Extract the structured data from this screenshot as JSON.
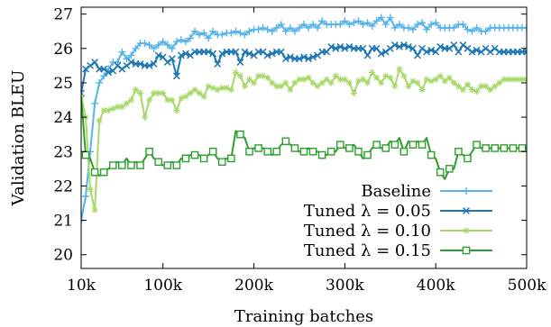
{
  "chart_data": {
    "type": "line",
    "xlabel": "Training batches",
    "ylabel": "Validation BLEU",
    "xlim": [
      10000,
      500000
    ],
    "ylim": [
      19.6,
      27.2
    ],
    "xticks": [
      10000,
      100000,
      200000,
      300000,
      400000,
      500000
    ],
    "xtick_labels": [
      "10k",
      "100k",
      "200k",
      "300k",
      "400k",
      "500k"
    ],
    "yticks": [
      20,
      21,
      22,
      23,
      24,
      25,
      26,
      27
    ],
    "ytick_labels": [
      "20",
      "21",
      "22",
      "23",
      "24",
      "25",
      "26",
      "27"
    ],
    "grid": false,
    "legend_position": "bottom-right",
    "x": [
      5000,
      10000,
      15000,
      20000,
      25000,
      30000,
      35000,
      40000,
      45000,
      50000,
      55000,
      60000,
      65000,
      70000,
      75000,
      80000,
      85000,
      90000,
      95000,
      100000,
      105000,
      110000,
      115000,
      120000,
      125000,
      130000,
      135000,
      140000,
      145000,
      150000,
      155000,
      160000,
      165000,
      170000,
      175000,
      180000,
      185000,
      190000,
      195000,
      200000,
      205000,
      210000,
      215000,
      220000,
      225000,
      230000,
      235000,
      240000,
      245000,
      250000,
      255000,
      260000,
      265000,
      270000,
      275000,
      280000,
      285000,
      290000,
      295000,
      300000,
      305000,
      310000,
      315000,
      320000,
      325000,
      330000,
      335000,
      340000,
      345000,
      350000,
      355000,
      360000,
      365000,
      370000,
      375000,
      380000,
      385000,
      390000,
      395000,
      400000,
      405000,
      410000,
      415000,
      420000,
      425000,
      430000,
      435000,
      440000,
      445000,
      450000,
      455000,
      460000,
      465000,
      470000,
      475000,
      480000,
      485000,
      490000,
      495000,
      500000
    ],
    "series": [
      {
        "name": "Baseline",
        "color": "#56b4e9",
        "marker": "plus",
        "values": [
          19.6,
          21.0,
          21.7,
          23.0,
          24.4,
          25.0,
          25.2,
          25.4,
          25.6,
          25.6,
          25.9,
          25.7,
          25.8,
          26.0,
          26.15,
          26.15,
          26.1,
          26.0,
          26.1,
          26.2,
          26.1,
          26.0,
          26.2,
          26.25,
          26.2,
          26.3,
          26.5,
          26.4,
          26.45,
          26.3,
          26.5,
          26.4,
          26.4,
          26.45,
          26.45,
          26.5,
          26.45,
          26.4,
          26.5,
          26.55,
          26.55,
          26.6,
          26.55,
          26.5,
          26.6,
          26.7,
          26.5,
          26.6,
          26.5,
          26.6,
          26.7,
          26.6,
          26.7,
          26.6,
          26.8,
          26.7,
          26.7,
          26.7,
          26.7,
          26.8,
          26.7,
          26.75,
          26.8,
          26.7,
          26.75,
          26.65,
          26.8,
          26.9,
          26.7,
          26.9,
          26.6,
          26.7,
          26.6,
          26.6,
          26.55,
          26.7,
          26.75,
          26.55,
          26.7,
          26.75,
          26.6,
          26.6,
          26.6,
          26.6,
          26.7,
          26.7,
          26.55,
          26.5,
          26.6,
          26.5,
          26.5,
          26.6,
          26.6,
          26.6,
          26.6,
          26.6,
          26.6,
          26.6,
          26.6,
          26.6
        ]
      },
      {
        "name": "Tuned λ = 0.05",
        "color": "#1f77b4",
        "marker": "x",
        "values": [
          null,
          24.7,
          25.4,
          25.5,
          25.6,
          25.4,
          25.4,
          25.3,
          25.35,
          25.5,
          25.4,
          25.5,
          25.6,
          25.55,
          25.55,
          25.5,
          25.5,
          25.55,
          25.8,
          25.75,
          25.6,
          25.7,
          25.2,
          25.8,
          25.85,
          25.8,
          25.9,
          25.9,
          25.9,
          25.9,
          25.85,
          25.55,
          25.85,
          25.9,
          25.9,
          25.9,
          25.6,
          25.9,
          25.85,
          25.8,
          25.9,
          25.9,
          25.8,
          25.85,
          25.9,
          25.9,
          25.7,
          25.75,
          25.7,
          25.7,
          25.75,
          25.7,
          25.75,
          25.8,
          25.9,
          25.9,
          26.05,
          26.0,
          26.05,
          26.0,
          26.05,
          26.0,
          26.0,
          26.0,
          25.8,
          26.0,
          26.0,
          25.85,
          25.9,
          26.0,
          26.1,
          26.05,
          26.1,
          26.05,
          26.0,
          25.8,
          26.0,
          25.9,
          25.95,
          25.9,
          26.05,
          26.0,
          26.0,
          26.1,
          25.9,
          26.1,
          26.0,
          25.9,
          25.95,
          25.9,
          26.0,
          25.9,
          26.0,
          25.9,
          25.9,
          25.9,
          25.9,
          25.9,
          25.9,
          25.9
        ]
      },
      {
        "name": "Tuned λ = 0.10",
        "color": "#a6d96a",
        "marker": "star",
        "values": [
          null,
          24.6,
          24.0,
          21.9,
          21.3,
          23.9,
          24.2,
          24.2,
          24.25,
          24.3,
          24.3,
          24.4,
          24.5,
          24.8,
          24.7,
          24.0,
          24.5,
          24.7,
          24.7,
          24.7,
          24.5,
          24.5,
          24.2,
          24.55,
          24.6,
          24.7,
          24.8,
          24.7,
          24.6,
          24.9,
          24.85,
          24.8,
          24.85,
          24.85,
          24.8,
          25.3,
          25.2,
          24.9,
          25.1,
          25.0,
          25.2,
          25.2,
          25.15,
          25.0,
          24.9,
          24.9,
          25.0,
          24.8,
          25.0,
          25.1,
          25.1,
          25.15,
          25.0,
          24.9,
          25.0,
          25.1,
          25.0,
          25.2,
          25.1,
          25.1,
          25.0,
          24.7,
          25.05,
          25.1,
          25.0,
          25.3,
          25.15,
          25.0,
          25.2,
          25.15,
          24.9,
          25.4,
          25.2,
          24.9,
          25.05,
          25.0,
          24.8,
          25.1,
          25.05,
          25.1,
          25.2,
          25.05,
          25.15,
          25.0,
          24.9,
          24.8,
          24.95,
          24.8,
          24.75,
          24.9,
          24.9,
          24.8,
          24.9,
          25.0,
          25.1,
          25.1,
          25.1,
          25.1,
          25.1,
          25.1
        ]
      },
      {
        "name": "Tuned λ = 0.15",
        "color": "#2ca02c",
        "marker": "square",
        "values": [
          null,
          24.6,
          22.9,
          22.8,
          22.4,
          22.3,
          22.4,
          22.5,
          22.6,
          22.7,
          22.6,
          22.8,
          22.6,
          22.7,
          22.6,
          22.8,
          23.0,
          22.8,
          22.7,
          22.6,
          22.6,
          22.7,
          22.6,
          22.8,
          22.8,
          22.9,
          22.9,
          22.9,
          22.8,
          22.9,
          23.0,
          22.8,
          22.7,
          22.8,
          22.8,
          23.6,
          23.5,
          23.4,
          23.0,
          23.1,
          23.1,
          23.1,
          23.0,
          22.9,
          23.0,
          23.2,
          23.3,
          23.2,
          23.1,
          23.0,
          23.0,
          23.1,
          23.0,
          23.0,
          22.9,
          22.9,
          23.0,
          23.0,
          23.2,
          23.1,
          23.1,
          23.2,
          23.0,
          22.8,
          22.9,
          23.1,
          23.2,
          23.1,
          23.1,
          23.3,
          23.2,
          23.4,
          23.0,
          23.3,
          23.2,
          23.3,
          23.2,
          23.4,
          22.9,
          22.8,
          22.4,
          22.2,
          22.5,
          22.5,
          23.0,
          22.9,
          22.8,
          23.0,
          23.2,
          23.1,
          23.1,
          23.1,
          23.1,
          23.1,
          23.1,
          23.1,
          23.1,
          23.1,
          23.1,
          23.1
        ]
      }
    ]
  }
}
